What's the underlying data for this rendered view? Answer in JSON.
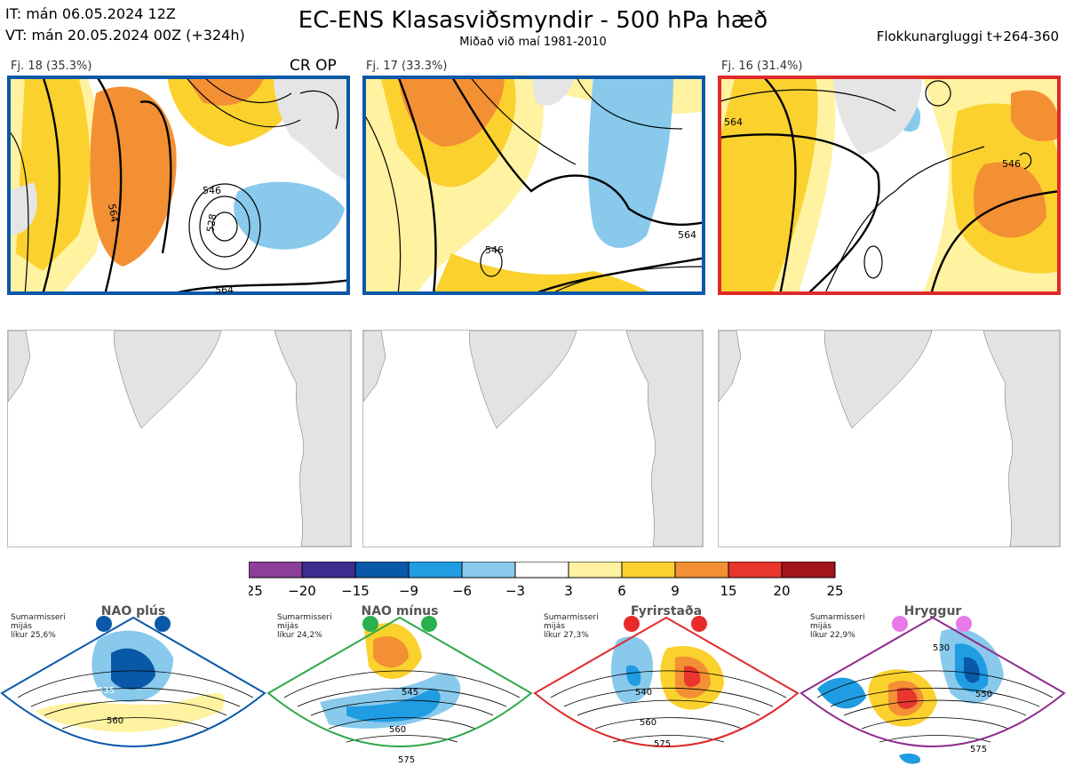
{
  "header": {
    "it": "IT: mán 06.05.2024 12Z",
    "vt": "VT: mán 20.05.2024 00Z  (+324h)",
    "title": "EC-ENS Klasasviðsmyndir - 500 hPa hæð",
    "subtitle": "Miðað við maí 1981-2010",
    "window": "Flokkunargluggi t+264-360"
  },
  "panels": [
    {
      "label": "Fj. 18 (35.3%)",
      "border_color": "#0a58a8",
      "contour_labels": [
        "546",
        "564",
        "546",
        "528",
        "546",
        "564"
      ]
    },
    {
      "label": "Fj. 17 (33.3%)",
      "border_color": "#0a58a8",
      "contour_labels": [
        "546",
        "546",
        "564",
        "546",
        "564",
        "564"
      ]
    },
    {
      "label": "Fj. 16 (31.4%)",
      "border_color": "#e02a2a",
      "contour_labels": [
        "546",
        "564",
        "546",
        "564",
        "546",
        "546",
        "564",
        "564"
      ]
    }
  ],
  "op_label": "CR OP",
  "colorbar": {
    "ticks": [
      "−25",
      "−20",
      "−15",
      "−9",
      "−6",
      "−3",
      "3",
      "6",
      "9",
      "15",
      "20",
      "25"
    ],
    "colors": [
      "#8b3f98",
      "#3c2d8f",
      "#0a58a8",
      "#1f9ce2",
      "#88c9ec",
      "#ffffff",
      "#fff2a0",
      "#fbd12e",
      "#f39034",
      "#e8362d",
      "#a3141b"
    ]
  },
  "regimes": [
    {
      "name": "NAO plús",
      "note": [
        "Sumarmisseri",
        "mijás",
        "líkur 25,6%"
      ],
      "color": "#0a58a8",
      "dot": "#0a58a8",
      "labels": [
        "535",
        "560"
      ]
    },
    {
      "name": "NAO mínus",
      "note": [
        "Sumarmisseri",
        "mijás",
        "líkur 24,2%"
      ],
      "color": "#2ca84a",
      "dot": "#2ab04e",
      "labels": [
        "545",
        "560",
        "575"
      ]
    },
    {
      "name": "Fyrirstaða",
      "note": [
        "Sumarmisseri",
        "mijás",
        "líkur 27,3%"
      ],
      "color": "#e02a2a",
      "dot": "#e82a2a",
      "labels": [
        "540",
        "560",
        "575"
      ]
    },
    {
      "name": "Hryggur",
      "note": [
        "Sumarmisseri",
        "mijás",
        "líkur 22,9%"
      ],
      "color": "#8e2b8e",
      "dot": "#e879e8",
      "labels": [
        "530",
        "550",
        "575"
      ]
    }
  ]
}
